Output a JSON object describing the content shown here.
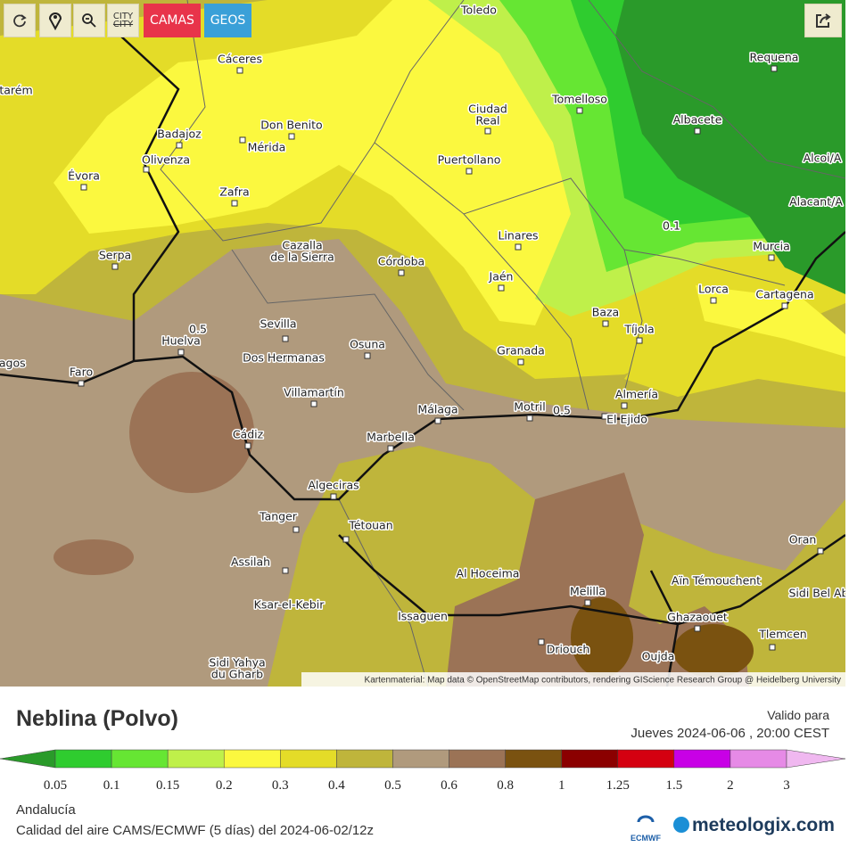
{
  "toolbar": {
    "city": "CITY",
    "camas": "CAMAS",
    "geos": "GEOS"
  },
  "map": {
    "places": [
      "Toledo",
      "Cáceres",
      "Requena",
      "Tomelloso",
      [
        "Ciudad",
        "Real"
      ],
      "Albacete",
      "Don Benito",
      "Badajoz",
      "Mérida",
      "Olivenza",
      "Puertollano",
      "Évora",
      "Zafra",
      "Alacant/A",
      "Linares",
      [
        "Cazalla",
        "de la Sierra"
      ],
      "Murcia",
      "Serpa",
      "Córdoba",
      "Jaén",
      "Lorca",
      "Cartagena",
      "Baza",
      "Tíjola",
      "Sevilla",
      "Huelva",
      "Osuna",
      "Granada",
      "Dos Hermanas",
      "Faro",
      "Villamartín",
      "Almería",
      "Motril",
      "Málaga",
      "El Ejido",
      "Cádiz",
      "Marbella",
      "Algeciras",
      "Tanger",
      "Tétouan",
      "Oran",
      "Assilah",
      "Al Hoceima",
      "Aïn Témouchent",
      "Melilla",
      "Sidi Bel Ab",
      "Ksar-el-Kebir",
      "Issaguen",
      "Ghazaouet",
      "Tlemcen",
      "Driouch",
      "Oujda",
      [
        "Sidi Yahya",
        "du Gharb"
      ],
      "tarém",
      "lagos",
      "Alcoi/A"
    ],
    "contour_labels": [
      "0.1",
      "0.5",
      "0.5"
    ],
    "attribution": "Kartenmaterial: Map data © OpenStreetMap contributors, rendering GIScience Research Group @ Heidelberg University"
  },
  "legend": {
    "title": "Neblina (Polvo)",
    "valid_label": "Valido para",
    "valid_time": "Jueves 2024-06-06 , 20:00 CEST",
    "scale": {
      "ticks": [
        "0.05",
        "0.1",
        "0.15",
        "0.2",
        "0.3",
        "0.4",
        "0.5",
        "0.6",
        "0.8",
        "1",
        "1.25",
        "1.5",
        "2",
        "3"
      ],
      "colors": [
        "#2a9a2a",
        "#2fcc2f",
        "#66e633",
        "#bff04a",
        "#fbf83f",
        "#e4dc28",
        "#bfb53b",
        "#b09a7d",
        "#9b7356",
        "#7a5210",
        "#8b0000",
        "#d40010",
        "#c800e6",
        "#e68ae6",
        "#f0b8f0"
      ]
    },
    "region": "Andalucía",
    "source": "Calidad del aire CAMS/ECMWF (5 días) del 2024-06-02/12z",
    "ecmwf": "ECMWF",
    "brand": "meteologix.com"
  }
}
